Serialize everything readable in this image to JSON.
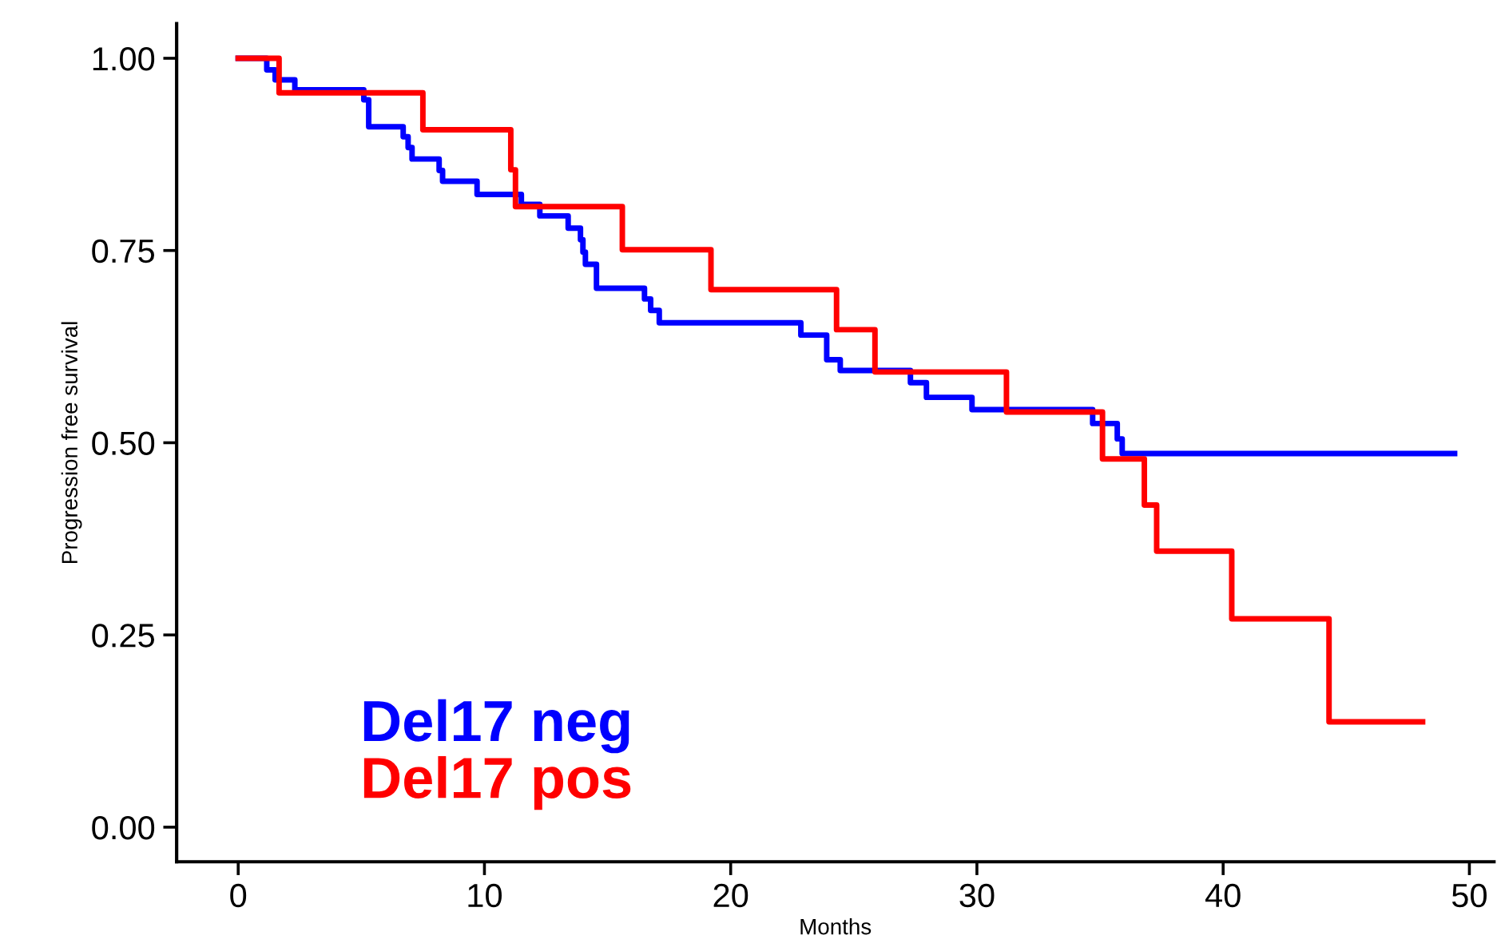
{
  "chart_data": {
    "type": "step",
    "xlabel": "Months",
    "ylabel": "Progression free survival",
    "xlim": [
      -2.5,
      51
    ],
    "ylim": [
      -0.045,
      1.045
    ],
    "xticks": [
      0,
      10,
      20,
      30,
      40,
      50
    ],
    "yticks": [
      {
        "value": 0,
        "label": "0.00"
      },
      {
        "value": 0.25,
        "label": "0.25"
      },
      {
        "value": 0.5,
        "label": "0.50"
      },
      {
        "value": 0.75,
        "label": "0.75"
      },
      {
        "value": 1,
        "label": "1.00"
      }
    ],
    "grid": false,
    "legend": "bottom left",
    "line_style": "solid",
    "marker": "none",
    "series": [
      {
        "name": "Del17 neg",
        "color": "#0000ff",
        "x": [
          0,
          1.16,
          1.5,
          2.3,
          5.1,
          5.3,
          6.7,
          6.9,
          7.06,
          8.16,
          8.3,
          9.7,
          11.5,
          12.25,
          13.4,
          13.9,
          14.0,
          14.1,
          14.55,
          16.5,
          16.75,
          17.1,
          22.85,
          23.9,
          24.45,
          27.3,
          27.95,
          29.8,
          34.7,
          35.7,
          35.9,
          49.4
        ],
        "values": [
          1.0,
          0.985,
          0.972,
          0.959,
          0.946,
          0.911,
          0.898,
          0.884,
          0.869,
          0.854,
          0.84,
          0.823,
          0.81,
          0.795,
          0.779,
          0.764,
          0.748,
          0.732,
          0.701,
          0.687,
          0.672,
          0.656,
          0.64,
          0.608,
          0.594,
          0.578,
          0.559,
          0.543,
          0.525,
          0.505,
          0.486,
          0.486
        ]
      },
      {
        "name": "Del17 pos",
        "color": "#ff0000",
        "x": [
          0,
          1.66,
          7.5,
          11.07,
          11.26,
          15.6,
          19.2,
          24.3,
          25.86,
          31.2,
          35.1,
          36.8,
          37.3,
          40.35,
          44.3,
          48.1
        ],
        "values": [
          1.0,
          0.955,
          0.907,
          0.855,
          0.807,
          0.751,
          0.699,
          0.647,
          0.592,
          0.54,
          0.479,
          0.419,
          0.359,
          0.271,
          0.137,
          0.137
        ]
      }
    ]
  }
}
